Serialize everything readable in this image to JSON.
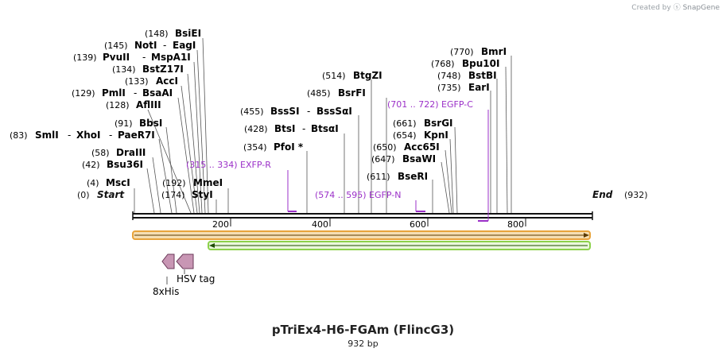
{
  "credit": {
    "created_by": "Created by",
    "brand": "SnapGene"
  },
  "map": {
    "title": "pTriEx4-H6-FGAm (FlincG3)",
    "length_label": "932 bp",
    "total_bp": 932,
    "start_label": "Start",
    "start_pos": "(0)",
    "end_label": "End",
    "end_pos": "(932)"
  },
  "ticks": [
    {
      "bp": 200,
      "label": "200"
    },
    {
      "bp": 400,
      "label": "400"
    },
    {
      "bp": 600,
      "label": "600"
    },
    {
      "bp": 800,
      "label": "800"
    }
  ],
  "enzymes_left": [
    {
      "pos": "(148)",
      "name": "BsiEI",
      "bp": 148
    },
    {
      "pos": "(145)",
      "name": "NotI",
      "extra": "EagI",
      "bp": 145
    },
    {
      "pos": "(139)",
      "name": "PvuII",
      "extra": "MspA1I",
      "bp": 139
    },
    {
      "pos": "(134)",
      "name": "BstZ17I",
      "bp": 134
    },
    {
      "pos": "(133)",
      "name": "AccI",
      "bp": 133
    },
    {
      "pos": "(129)",
      "name": "PmlI",
      "extra": "BsaAI",
      "bp": 129
    },
    {
      "pos": "(128)",
      "name": "AflIII",
      "bp": 128
    },
    {
      "pos": "(91)",
      "name": "BbsI",
      "bp": 91
    },
    {
      "pos": "(83)",
      "name": "SmlI",
      "extra": "XhoI",
      "extra2": "PaeR7I",
      "bp": 83
    },
    {
      "pos": "(58)",
      "name": "DraIII",
      "bp": 58
    },
    {
      "pos": "(42)",
      "name": "Bsu36I",
      "bp": 42
    },
    {
      "pos": "(4)",
      "name": "MscI",
      "bp": 4
    },
    {
      "pos": "(192)",
      "name": "MmeI",
      "bp": 192
    },
    {
      "pos": "(174)",
      "name": "StyI",
      "bp": 174
    }
  ],
  "enzymes_mid": [
    {
      "pos": "(455)",
      "name": "BssSI",
      "extra": "BssSαI",
      "bp": 455
    },
    {
      "pos": "(428)",
      "name": "BtsI",
      "extra": "BtsαI",
      "bp": 428
    },
    {
      "pos": "(354)",
      "name": "PfoI *",
      "bp": 354
    },
    {
      "pos": "(514)",
      "name": "BtgZI",
      "bp": 514
    },
    {
      "pos": "(485)",
      "name": "BsrFI",
      "bp": 485
    }
  ],
  "enzymes_right": [
    {
      "pos": "(770)",
      "name": "BmrI",
      "bp": 770
    },
    {
      "pos": "(768)",
      "name": "Bpu10I",
      "bp": 768
    },
    {
      "pos": "(748)",
      "name": "BstBI",
      "bp": 748
    },
    {
      "pos": "(735)",
      "name": "EarI",
      "bp": 735
    },
    {
      "pos": "(661)",
      "name": "BsrGI",
      "bp": 661
    },
    {
      "pos": "(654)",
      "name": "KpnI",
      "bp": 654
    },
    {
      "pos": "(650)",
      "name": "Acc65I",
      "bp": 650
    },
    {
      "pos": "(647)",
      "name": "BsaWI",
      "bp": 647
    },
    {
      "pos": "(611)",
      "name": "BseRI",
      "bp": 611
    }
  ],
  "primers": [
    {
      "label": "(315 .. 334)  EXFP-R",
      "start": 315,
      "end": 334,
      "direction": "reverse"
    },
    {
      "label": "(574 .. 595)  EGFP-N",
      "start": 574,
      "end": 595,
      "direction": "forward"
    },
    {
      "label": "(701 .. 722)  EGFP-C",
      "start": 701,
      "end": 722,
      "direction": "reverse"
    }
  ],
  "features": [
    {
      "name": "HSV tag",
      "type": "tag"
    },
    {
      "name": "8xHis",
      "type": "tag"
    }
  ],
  "colors": {
    "backbone": "#111111",
    "primer": "#9b30c8",
    "orange_feature": "#e8a33a",
    "green_feature": "#8cd14a",
    "tag_fill": "#c896b4"
  }
}
